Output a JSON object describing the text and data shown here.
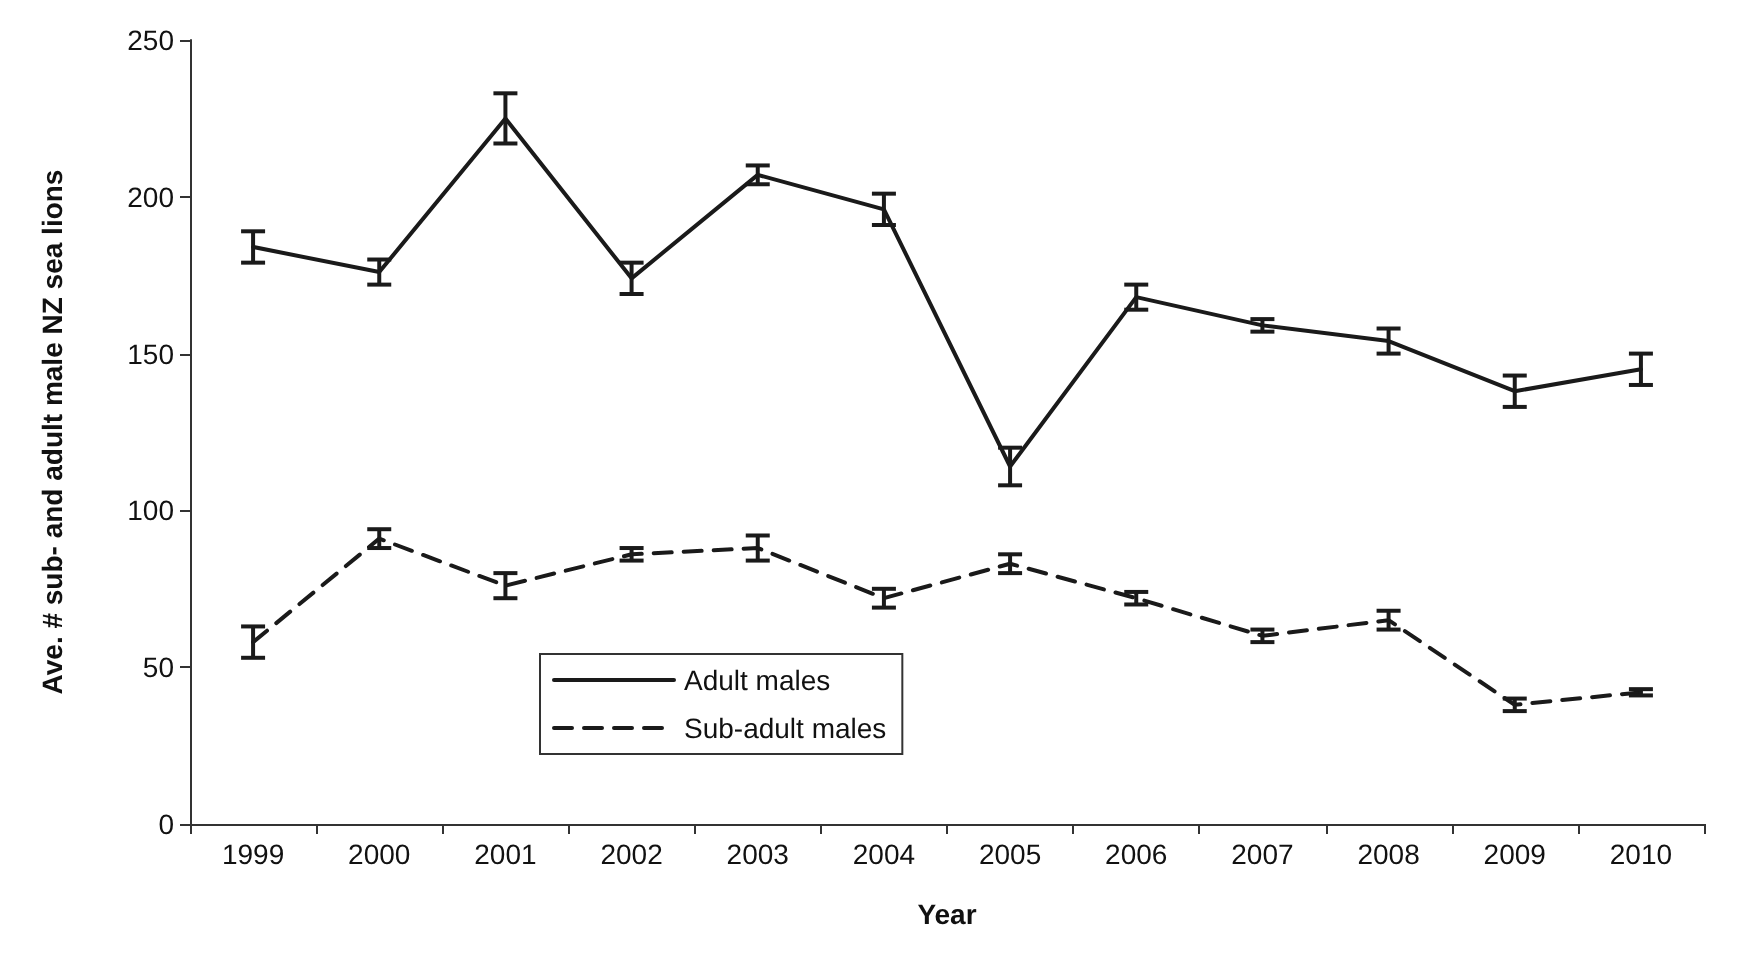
{
  "chart_data": {
    "type": "line",
    "xlabel": "Year",
    "ylabel": "Ave. # sub- and adult male NZ sea lions",
    "categories": [
      "1999",
      "2000",
      "2001",
      "2002",
      "2003",
      "2004",
      "2005",
      "2006",
      "2007",
      "2008",
      "2009",
      "2010"
    ],
    "series": [
      {
        "name": "Adult males",
        "color": "#1a1a1a",
        "line_style": "solid",
        "values": [
          184,
          176,
          225,
          174,
          207,
          196,
          114,
          168,
          159,
          154,
          138,
          145
        ],
        "errors": [
          5,
          4,
          8,
          5,
          3,
          5,
          6,
          4,
          2,
          4,
          5,
          5
        ]
      },
      {
        "name": "Sub-adult males",
        "color": "#1a1a1a",
        "line_style": "dashed",
        "values": [
          58,
          91,
          76,
          86,
          88,
          72,
          83,
          72,
          60,
          65,
          38,
          42
        ],
        "errors": [
          5,
          3,
          4,
          2,
          4,
          3,
          3,
          2,
          2,
          3,
          2,
          1
        ]
      }
    ],
    "ylim": [
      0,
      250
    ],
    "yticks": [
      0,
      50,
      100,
      150,
      200,
      250
    ],
    "grid": false,
    "legend": "bottom",
    "marker": "none"
  }
}
